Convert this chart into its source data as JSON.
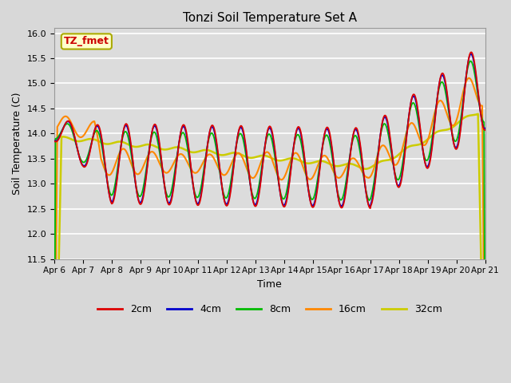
{
  "title": "Tonzi Soil Temperature Set A",
  "xlabel": "Time",
  "ylabel": "Soil Temperature (C)",
  "ylim": [
    11.5,
    16.1
  ],
  "legend_label": "TZ_fmet",
  "series_labels": [
    "2cm",
    "4cm",
    "8cm",
    "16cm",
    "32cm"
  ],
  "series_colors": [
    "#dd0000",
    "#0000cc",
    "#00bb00",
    "#ff8800",
    "#cccc00"
  ],
  "x_tick_labels": [
    "Apr 6",
    "Apr 7",
    "Apr 8",
    "Apr 9",
    "Apr 10",
    "Apr 11",
    "Apr 12",
    "Apr 13",
    "Apr 14",
    "Apr 15",
    "Apr 16",
    "Apr 17",
    "Apr 18",
    "Apr 19",
    "Apr 20",
    "Apr 21"
  ],
  "background_color": "#d8d8d8",
  "plot_bg_color": "#dcdcdc",
  "grid_color": "#ffffff",
  "n_points": 721,
  "days": 15
}
